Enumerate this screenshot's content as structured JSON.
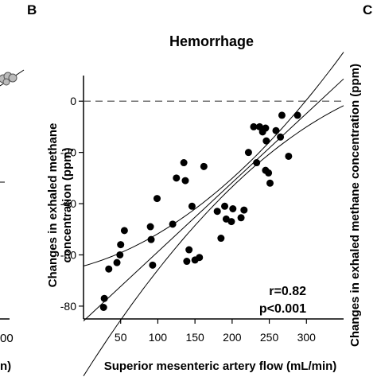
{
  "panels": {
    "left_letter": "B",
    "right_letter": "C"
  },
  "left_fragment": {
    "tick_label": "00",
    "axis_label_tail": "n)"
  },
  "right_fragment": {
    "ylabel": "Changes in exhaled methane concentration (ppm)"
  },
  "chart_data": {
    "type": "scatter",
    "title": "Hemorrhage",
    "xlabel": "Superior mesenteric artery flow (mL/min)",
    "ylabel_line1": "Changes in exhaled methane",
    "ylabel_line2": "concentration (ppm)",
    "xlim": [
      0,
      350
    ],
    "ylim": [
      -85,
      10
    ],
    "x_ticks": [
      50,
      100,
      150,
      200,
      250,
      300
    ],
    "y_ticks": [
      0,
      -20,
      -40,
      -60,
      -80
    ],
    "reference_line_y": 0,
    "annotation": {
      "r": "r=0.82",
      "p": "p<0.001"
    },
    "fit": {
      "slope": 0.27,
      "intercept": -85.8,
      "ci_x1": 210,
      "ci_a": 1.62,
      "ci_b": 0.00045
    },
    "points": [
      [
        27,
        -80.5
      ],
      [
        28,
        -77
      ],
      [
        34,
        -65.5
      ],
      [
        45,
        -63
      ],
      [
        49,
        -60
      ],
      [
        50,
        -56
      ],
      [
        55,
        -50.5
      ],
      [
        90,
        -49
      ],
      [
        91,
        -54
      ],
      [
        93,
        -64
      ],
      [
        99,
        -38
      ],
      [
        120,
        -48
      ],
      [
        125,
        -30
      ],
      [
        135,
        -24
      ],
      [
        137,
        -31
      ],
      [
        139,
        -62.5
      ],
      [
        142,
        -58
      ],
      [
        146,
        -41
      ],
      [
        150,
        -62
      ],
      [
        156,
        -61
      ],
      [
        162,
        -25.5
      ],
      [
        180,
        -43
      ],
      [
        185,
        -53.5
      ],
      [
        190,
        -41
      ],
      [
        192,
        -46
      ],
      [
        199,
        -47
      ],
      [
        201,
        -42
      ],
      [
        212,
        -45.5
      ],
      [
        216,
        -42.5
      ],
      [
        222,
        -20
      ],
      [
        229,
        -10
      ],
      [
        233,
        -24
      ],
      [
        237,
        -10
      ],
      [
        241,
        -12
      ],
      [
        245,
        -27
      ],
      [
        245,
        -10.5
      ],
      [
        246,
        -15.5
      ],
      [
        249,
        -28
      ],
      [
        251,
        -32
      ],
      [
        259,
        -11.5
      ],
      [
        265,
        -14
      ],
      [
        267,
        -5.5
      ],
      [
        276,
        -21.5
      ],
      [
        288,
        -5.5
      ]
    ]
  }
}
